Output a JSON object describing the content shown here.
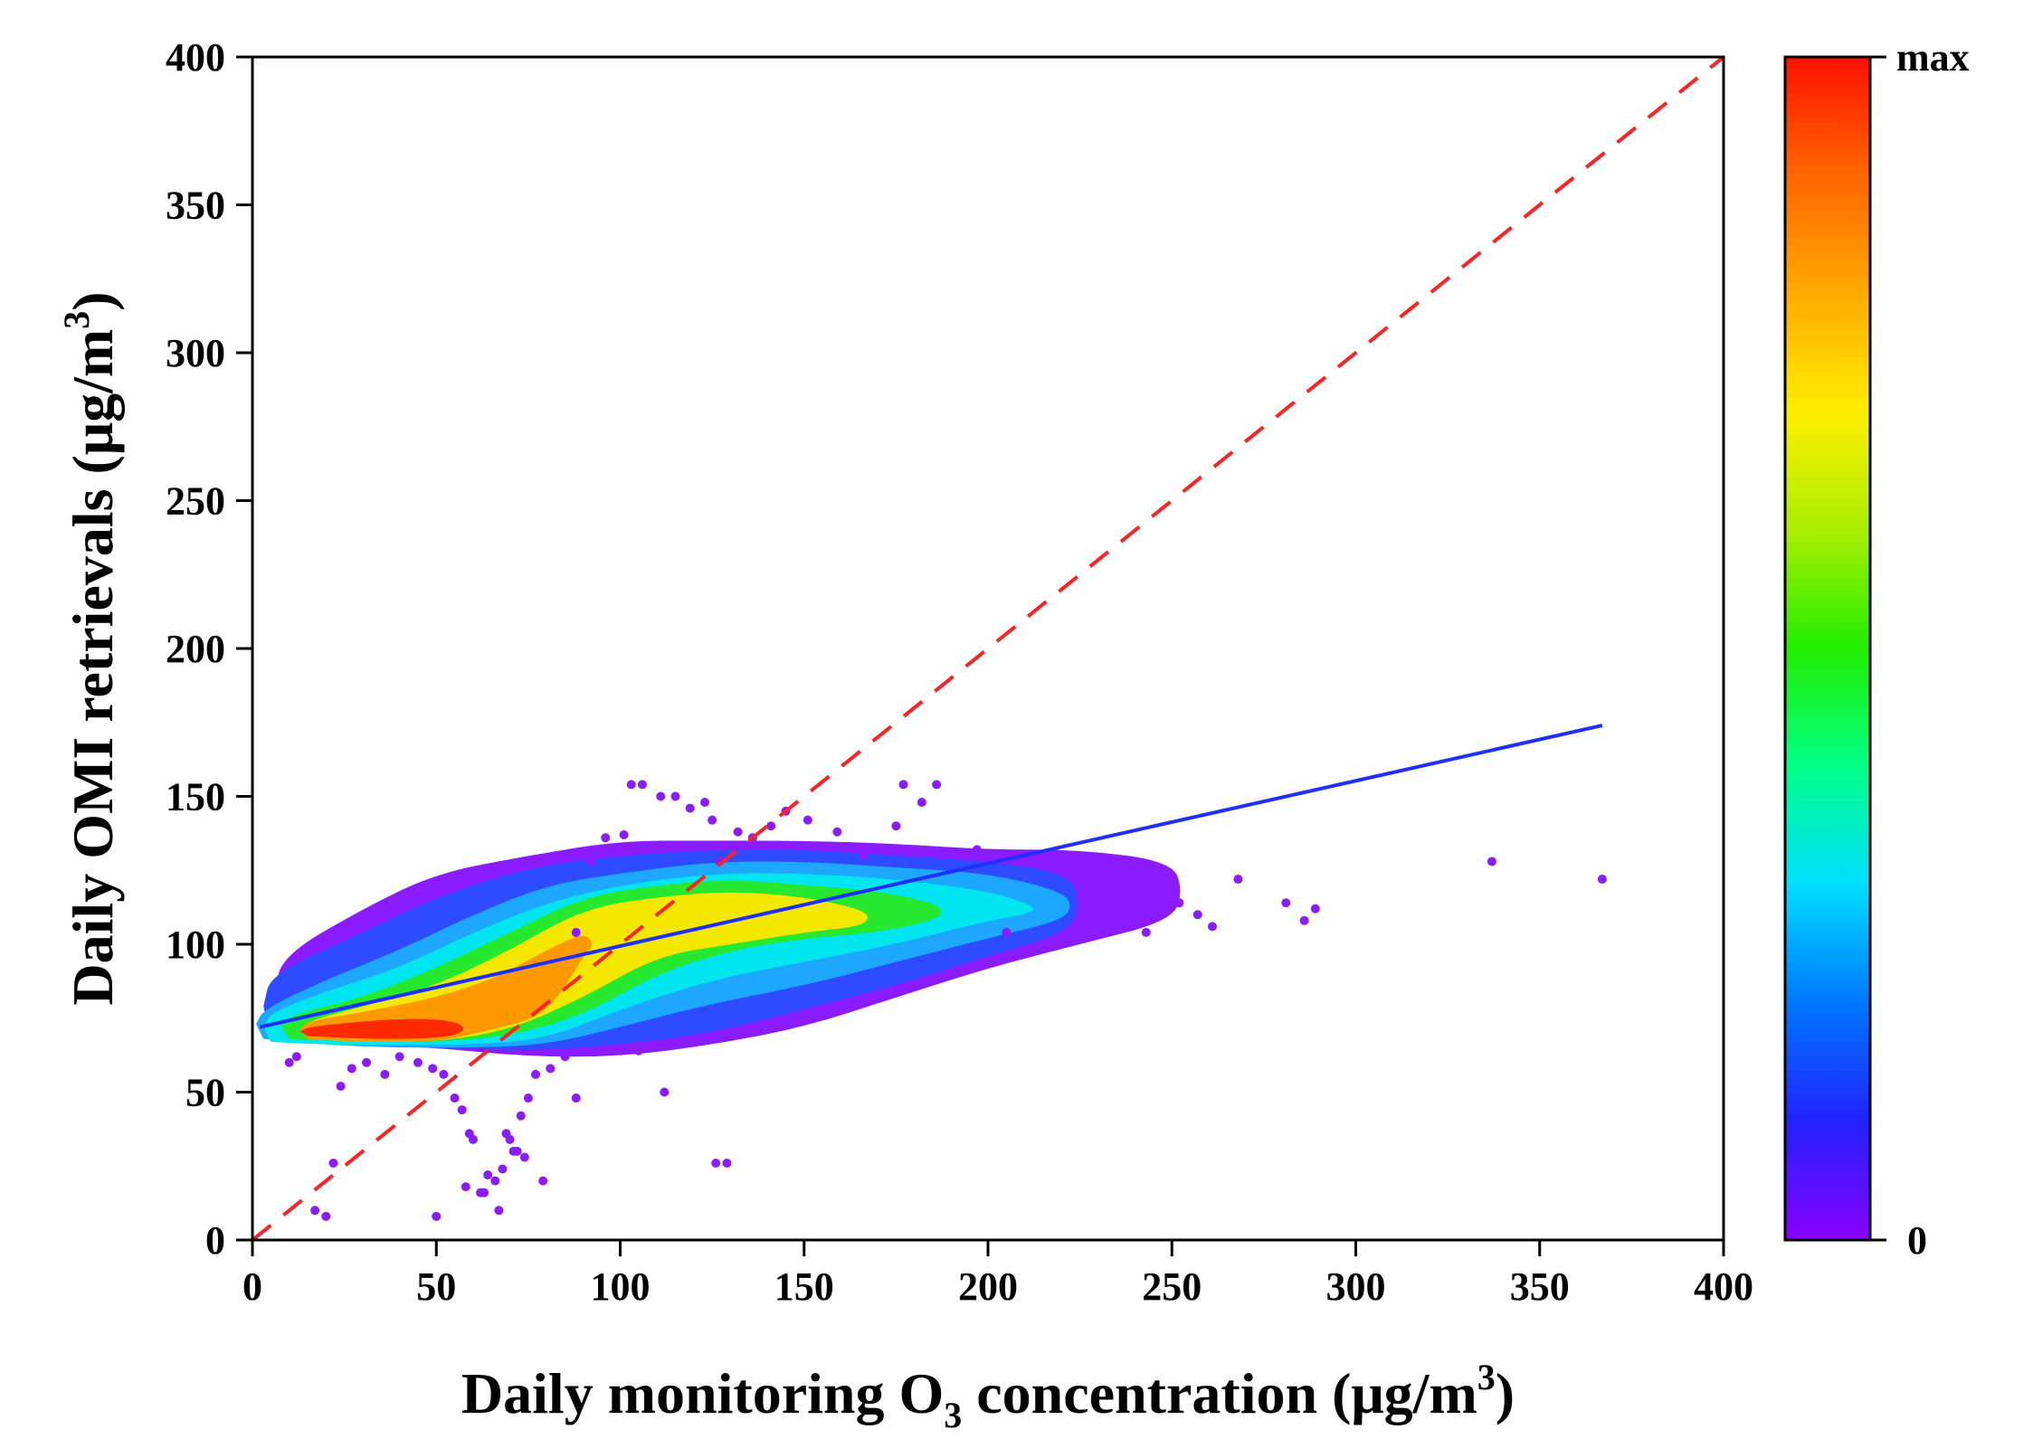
{
  "chart_data": {
    "type": "scatter",
    "title": "",
    "xlabel": {
      "prefix": "Daily monitoring O",
      "subscript": "3",
      "middle": " concentration (μg/m",
      "superscript": "3",
      "suffix": ")"
    },
    "ylabel": {
      "prefix": "Daily OMI retrievals (μg/m",
      "superscript": "3",
      "suffix": ")"
    },
    "xlim": [
      0,
      400
    ],
    "ylim": [
      0,
      400
    ],
    "xticks": [
      0,
      50,
      100,
      150,
      200,
      250,
      300,
      350,
      400
    ],
    "yticks": [
      0,
      50,
      100,
      150,
      200,
      250,
      300,
      350,
      400
    ],
    "grid": false,
    "colorbar": {
      "label_max": "max",
      "label_min": "0",
      "colors": [
        "#8800ff",
        "#2222ff",
        "#0077ff",
        "#00ddff",
        "#00ff88",
        "#22ee00",
        "#aaee00",
        "#ffee00",
        "#ffaa00",
        "#ff6600",
        "#ff1100"
      ]
    },
    "density_colors": {
      "purple": "#8a1cff",
      "blue": "#2f4bff",
      "lightblue": "#1da7ff",
      "cyan": "#00e5f0",
      "green": "#26e82f",
      "yellow": "#f5e800",
      "orange": "#ff9900",
      "red": "#ff2a00"
    },
    "one_to_one_line": {
      "name": "1:1 line",
      "style": "dashed",
      "color": "#ff2222",
      "x": [
        0,
        400
      ],
      "y": [
        0,
        400
      ]
    },
    "fit_line": {
      "name": "linear fit",
      "color": "#1f2fff",
      "x": [
        2,
        367
      ],
      "y": [
        72,
        174
      ]
    },
    "density_regions": [
      {
        "level": "purple",
        "band": [
          [
            8,
            70,
            96
          ],
          [
            30,
            66,
            112
          ],
          [
            50,
            65,
            124
          ],
          [
            75,
            62,
            130
          ],
          [
            100,
            62,
            135
          ],
          [
            125,
            66,
            135
          ],
          [
            150,
            72,
            135
          ],
          [
            175,
            82,
            134
          ],
          [
            200,
            92,
            132
          ],
          [
            225,
            100,
            132
          ],
          [
            250,
            108,
            128
          ]
        ]
      },
      {
        "level": "blue",
        "band": [
          [
            5,
            68,
            90
          ],
          [
            30,
            66,
            104
          ],
          [
            50,
            65,
            116
          ],
          [
            75,
            64,
            126
          ],
          [
            100,
            66,
            130
          ],
          [
            125,
            70,
            132
          ],
          [
            150,
            78,
            132
          ],
          [
            175,
            86,
            130
          ],
          [
            200,
            96,
            128
          ],
          [
            222,
            104,
            124
          ]
        ]
      },
      {
        "level": "lightblue",
        "band": [
          [
            3,
            68,
            78
          ],
          [
            20,
            66,
            88
          ],
          [
            40,
            65,
            98
          ],
          [
            60,
            65,
            110
          ],
          [
            80,
            66,
            120
          ],
          [
            100,
            72,
            124
          ],
          [
            125,
            80,
            128
          ],
          [
            150,
            86,
            128
          ],
          [
            175,
            94,
            126
          ],
          [
            200,
            102,
            124
          ],
          [
            220,
            108,
            118
          ]
        ]
      },
      {
        "level": "cyan",
        "band": [
          [
            5,
            67,
            77
          ],
          [
            20,
            66,
            84
          ],
          [
            40,
            66,
            92
          ],
          [
            60,
            66,
            104
          ],
          [
            80,
            68,
            114
          ],
          [
            100,
            78,
            120
          ],
          [
            125,
            88,
            124
          ],
          [
            150,
            94,
            124
          ],
          [
            175,
            100,
            122
          ],
          [
            200,
            108,
            118
          ],
          [
            210,
            110,
            114
          ]
        ]
      },
      {
        "level": "green",
        "band": [
          [
            10,
            68,
            76
          ],
          [
            30,
            67,
            82
          ],
          [
            50,
            67,
            92
          ],
          [
            70,
            69,
            104
          ],
          [
            90,
            76,
            116
          ],
          [
            110,
            90,
            120
          ],
          [
            130,
            98,
            122
          ],
          [
            150,
            102,
            120
          ],
          [
            170,
            104,
            118
          ],
          [
            185,
            108,
            114
          ]
        ]
      },
      {
        "level": "yellow",
        "band": [
          [
            15,
            68,
            74
          ],
          [
            30,
            67,
            79
          ],
          [
            50,
            67,
            86
          ],
          [
            70,
            71,
            98
          ],
          [
            90,
            82,
            112
          ],
          [
            110,
            96,
            116
          ],
          [
            130,
            100,
            118
          ],
          [
            150,
            104,
            116
          ],
          [
            165,
            106,
            112
          ]
        ]
      },
      {
        "level": "orange",
        "band": [
          [
            15,
            68,
            74
          ],
          [
            30,
            67,
            77
          ],
          [
            50,
            67,
            82
          ],
          [
            65,
            71,
            88
          ],
          [
            80,
            76,
            98
          ],
          [
            90,
            96,
            104
          ]
        ]
      },
      {
        "level": "red",
        "band": [
          [
            15,
            69,
            72
          ],
          [
            30,
            68,
            74
          ],
          [
            45,
            68,
            75
          ],
          [
            55,
            69,
            74
          ]
        ]
      }
    ],
    "outlier_points": {
      "x": [
        337,
        367,
        289,
        286,
        281,
        268,
        261,
        257,
        252,
        247,
        243,
        238,
        232,
        226,
        217,
        205,
        197,
        186,
        182,
        177,
        175,
        166,
        159,
        151,
        145,
        141,
        136,
        132,
        127,
        125,
        123,
        119,
        115,
        111,
        106,
        103,
        101,
        96,
        92,
        88,
        85,
        81,
        77,
        75,
        73,
        72,
        70,
        69,
        68,
        66,
        64,
        62,
        60,
        59,
        57,
        55,
        52,
        49,
        45,
        40,
        36,
        31,
        27,
        24,
        22,
        20,
        17,
        12,
        10,
        126,
        129,
        105,
        112,
        88,
        58,
        63,
        74,
        79,
        71,
        67,
        50
      ],
      "y": [
        128,
        122,
        112,
        108,
        114,
        122,
        106,
        110,
        114,
        118,
        104,
        110,
        120,
        129,
        128,
        104,
        132,
        154,
        148,
        154,
        140,
        130,
        138,
        142,
        145,
        140,
        136,
        138,
        128,
        142,
        148,
        146,
        150,
        150,
        154,
        154,
        137,
        136,
        128,
        104,
        62,
        58,
        56,
        48,
        42,
        30,
        34,
        36,
        24,
        20,
        22,
        16,
        34,
        36,
        44,
        48,
        56,
        58,
        60,
        62,
        56,
        60,
        58,
        52,
        26,
        8,
        10,
        62,
        60,
        26,
        26,
        64,
        50,
        48,
        18,
        16,
        28,
        20,
        30,
        10,
        8
      ]
    }
  }
}
